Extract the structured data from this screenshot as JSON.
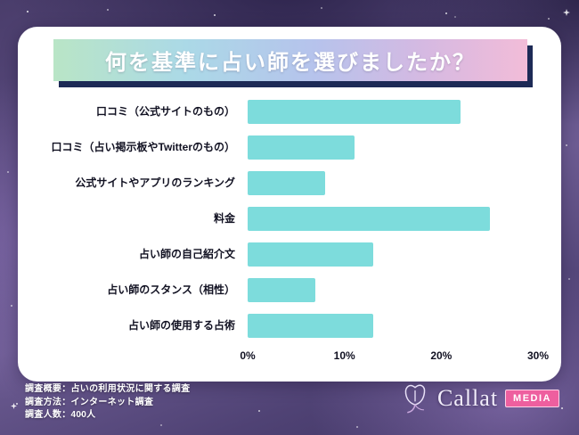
{
  "header": {
    "title": "何を基準に占い師を選びましたか？"
  },
  "chart_data": {
    "type": "bar",
    "orientation": "horizontal",
    "title": "何を基準に占い師を選びましたか？",
    "categories": [
      "口コミ（公式サイトのもの）",
      "口コミ（占い掲示板やTwitterのもの）",
      "公式サイトやアプリのランキング",
      "料金",
      "占い師の自己紹介文",
      "占い師のスタンス（相性）",
      "占い師の使用する占術"
    ],
    "values": [
      22,
      11,
      8,
      25,
      13,
      7,
      13
    ],
    "unit": "%",
    "x_ticks": [
      "0%",
      "10%",
      "20%",
      "30%"
    ],
    "xlim": [
      0,
      30
    ],
    "grid": false,
    "legend": false,
    "bar_color": "#7ddcdc"
  },
  "footer": {
    "survey": {
      "line1": "調査概要：占いの利用状況に関する調査",
      "line2": "調査方法：インターネット調査",
      "line3": "調査人数：400人"
    },
    "logo": {
      "brand": "Callat",
      "badge": "MEDIA"
    }
  },
  "colors": {
    "background": "#5a4b7d",
    "card": "#ffffff",
    "banner_shadow": "#1d2a56",
    "bar": "#7ddcdc",
    "badge": "#ee5f9f"
  }
}
